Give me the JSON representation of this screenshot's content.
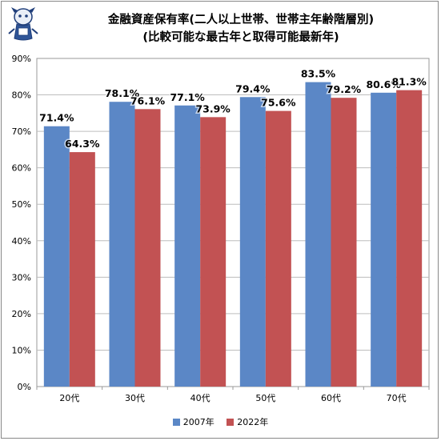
{
  "chart_data": {
    "type": "bar",
    "title": "金融資産保有率(二人以上世帯、世帯主年齢階層別)",
    "subtitle": "(比較可能な最古年と取得可能最新年)",
    "categories": [
      "20代",
      "30代",
      "40代",
      "50代",
      "60代",
      "70代"
    ],
    "series": [
      {
        "name": "2007年",
        "color": "#5B87C6",
        "values": [
          71.4,
          78.1,
          77.1,
          79.4,
          83.5,
          80.6
        ]
      },
      {
        "name": "2022年",
        "color": "#C25253",
        "values": [
          64.3,
          76.1,
          73.9,
          75.6,
          79.2,
          81.3
        ]
      }
    ],
    "value_labels": [
      [
        "71.4%",
        "78.1%",
        "77.1%",
        "79.4%",
        "83.5%",
        "80.6%"
      ],
      [
        "64.3%",
        "76.1%",
        "73.9%",
        "75.6%",
        "79.2%",
        "81.3%"
      ]
    ],
    "yticks": [
      "0%",
      "10%",
      "20%",
      "30%",
      "40%",
      "50%",
      "60%",
      "70%",
      "80%",
      "90%"
    ],
    "ylim": [
      0,
      90
    ],
    "grid": true,
    "legend_position": "bottom"
  }
}
